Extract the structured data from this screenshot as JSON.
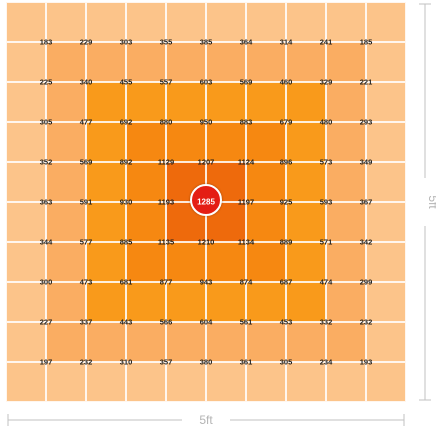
{
  "diagram": {
    "rows": [
      [
        183,
        229,
        303,
        355,
        385,
        364,
        314,
        241,
        185
      ],
      [
        225,
        340,
        455,
        557,
        603,
        569,
        460,
        329,
        221
      ],
      [
        305,
        477,
        692,
        880,
        950,
        883,
        679,
        480,
        293
      ],
      [
        352,
        569,
        892,
        1129,
        1207,
        1124,
        896,
        573,
        349
      ],
      [
        363,
        591,
        930,
        1193,
        1285,
        1197,
        925,
        593,
        367
      ],
      [
        344,
        577,
        885,
        1135,
        1210,
        1134,
        889,
        571,
        342
      ],
      [
        300,
        473,
        681,
        877,
        943,
        874,
        687,
        474,
        299
      ],
      [
        227,
        337,
        443,
        566,
        604,
        561,
        453,
        332,
        232
      ],
      [
        197,
        232,
        310,
        357,
        380,
        361,
        305,
        234,
        193
      ]
    ],
    "width_label": "5ft",
    "height_label": "5ft",
    "colors": {
      "outer": "#fcc48a",
      "ring": "#faad62",
      "mid": "#f99a1b",
      "inner": "#f68811",
      "core": "#ee6a0c",
      "peak": "#e41e14",
      "dimension": "#c2c2c2"
    }
  }
}
